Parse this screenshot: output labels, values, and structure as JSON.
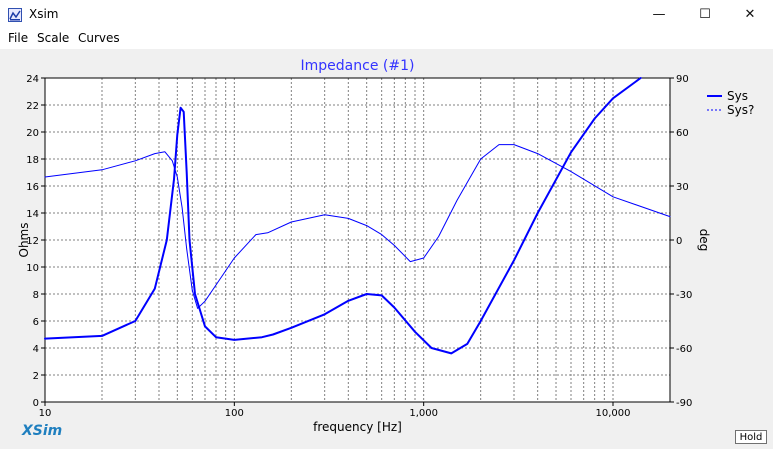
{
  "window": {
    "title": "Xsim"
  },
  "window_controls": {
    "minimize": "—",
    "maximize": "☐",
    "close": "✕"
  },
  "menu": [
    "File",
    "Scale",
    "Curves"
  ],
  "brand": "XSim",
  "hold_label": "Hold",
  "colors": {
    "trace": "#0000ff",
    "grid": "#808080",
    "title": "#3333ff"
  },
  "chart_data": {
    "type": "line",
    "title": "Impedance (#1)",
    "xlabel": "frequency [Hz]",
    "ylabel": "Ohms",
    "y2label": "deg",
    "xscale": "log",
    "xlim": [
      10,
      20000
    ],
    "ylim": [
      0,
      24
    ],
    "y2lim": [
      -90,
      90
    ],
    "x_ticks": [
      "10",
      "100",
      "1,000",
      "10,000"
    ],
    "y_ticks": [
      "0",
      "2",
      "4",
      "6",
      "8",
      "10",
      "12",
      "14",
      "16",
      "18",
      "20",
      "22",
      "24"
    ],
    "y2_ticks": [
      "-90",
      "-60",
      "-30",
      "0",
      "30",
      "60",
      "90"
    ],
    "grid": true,
    "legend": {
      "position": "right",
      "items": [
        "Sys",
        "Sys?"
      ]
    },
    "series": [
      {
        "name": "Sys",
        "axis": "left",
        "x": [
          10,
          20,
          30,
          38,
          44,
          48,
          50,
          52,
          54,
          56,
          58,
          62,
          70,
          80,
          100,
          140,
          160,
          200,
          300,
          400,
          500,
          600,
          700,
          900,
          1100,
          1400,
          1700,
          2000,
          3000,
          4000,
          6000,
          8000,
          10000,
          14000
        ],
        "y": [
          4.7,
          4.9,
          6.0,
          8.4,
          12.0,
          16.5,
          19.8,
          21.8,
          21.5,
          17.0,
          12.0,
          8.0,
          5.6,
          4.8,
          4.6,
          4.8,
          5.0,
          5.5,
          6.5,
          7.5,
          8.0,
          7.9,
          7.0,
          5.2,
          4.0,
          3.6,
          4.3,
          6.0,
          10.5,
          14.0,
          18.5,
          21.0,
          22.5,
          24.0
        ]
      },
      {
        "name": "Sys?",
        "axis": "right",
        "x": [
          10,
          20,
          30,
          38,
          43,
          47,
          50,
          53,
          56,
          60,
          64,
          70,
          80,
          100,
          130,
          150,
          200,
          300,
          400,
          500,
          600,
          700,
          850,
          1000,
          1200,
          1500,
          2000,
          2500,
          3000,
          4000,
          6000,
          10000,
          20000
        ],
        "y": [
          35,
          39,
          44,
          48,
          49,
          44,
          35,
          18,
          -5,
          -28,
          -38,
          -34,
          -25,
          -10,
          3,
          4,
          10,
          14,
          12,
          8,
          3,
          -3,
          -12,
          -10,
          2,
          22,
          45,
          53,
          53,
          48,
          38,
          24,
          13
        ]
      }
    ]
  }
}
